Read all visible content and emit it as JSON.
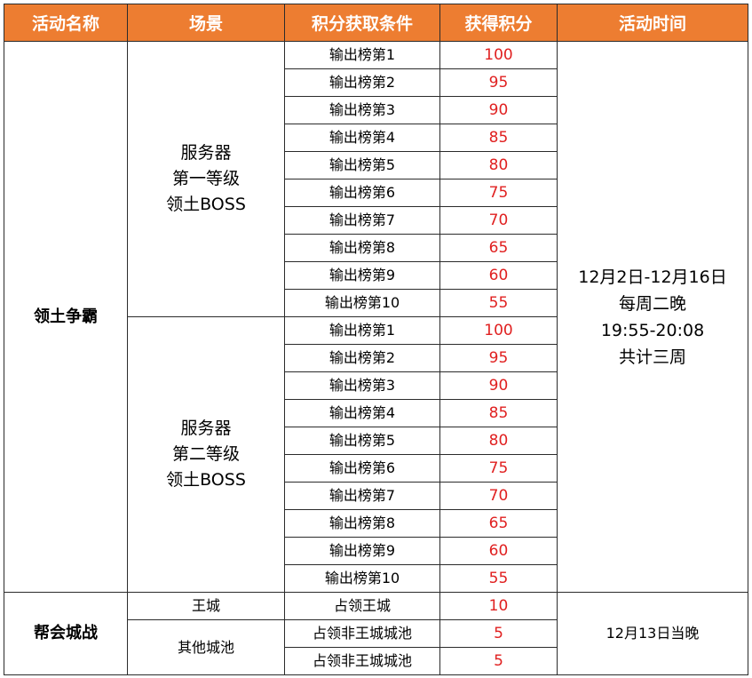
{
  "header": {
    "name": "活动名称",
    "scene": "场景",
    "condition": "积分获取条件",
    "points": "获得积分",
    "time": "活动时间"
  },
  "activities": [
    {
      "name": "领土争霸",
      "time_lines": [
        "12月2日-12月16日",
        "每周二晚",
        "19:55-20:08",
        "共计三周"
      ],
      "scenes": [
        {
          "lines": [
            "服务器",
            "第一等级",
            "领土BOSS"
          ],
          "rows": [
            {
              "condition": "输出榜第1",
              "points": "100"
            },
            {
              "condition": "输出榜第2",
              "points": "95"
            },
            {
              "condition": "输出榜第3",
              "points": "90"
            },
            {
              "condition": "输出榜第4",
              "points": "85"
            },
            {
              "condition": "输出榜第5",
              "points": "80"
            },
            {
              "condition": "输出榜第6",
              "points": "75"
            },
            {
              "condition": "输出榜第7",
              "points": "70"
            },
            {
              "condition": "输出榜第8",
              "points": "65"
            },
            {
              "condition": "输出榜第9",
              "points": "60"
            },
            {
              "condition": "输出榜第10",
              "points": "55"
            }
          ]
        },
        {
          "lines": [
            "服务器",
            "第二等级",
            "领土BOSS"
          ],
          "rows": [
            {
              "condition": "输出榜第1",
              "points": "100"
            },
            {
              "condition": "输出榜第2",
              "points": "95"
            },
            {
              "condition": "输出榜第3",
              "points": "90"
            },
            {
              "condition": "输出榜第4",
              "points": "85"
            },
            {
              "condition": "输出榜第5",
              "points": "80"
            },
            {
              "condition": "输出榜第6",
              "points": "75"
            },
            {
              "condition": "输出榜第7",
              "points": "70"
            },
            {
              "condition": "输出榜第8",
              "points": "65"
            },
            {
              "condition": "输出榜第9",
              "points": "60"
            },
            {
              "condition": "输出榜第10",
              "points": "55"
            }
          ]
        }
      ]
    },
    {
      "name": "帮会城战",
      "time_lines": [
        "12月13日当晚"
      ],
      "scenes": [
        {
          "lines": [
            "王城"
          ],
          "rows": [
            {
              "condition": "占领王城",
              "points": "10"
            }
          ]
        },
        {
          "lines": [
            "其他城池"
          ],
          "rows": [
            {
              "condition": "占领非王城城池",
              "points": "5"
            },
            {
              "condition": "占领非王城城池",
              "points": "5"
            }
          ]
        }
      ]
    }
  ],
  "colors": {
    "header_bg": "#ed7d31",
    "header_text": "#ffffff",
    "points_text": "#e02020",
    "border": "#2b2b2b"
  }
}
